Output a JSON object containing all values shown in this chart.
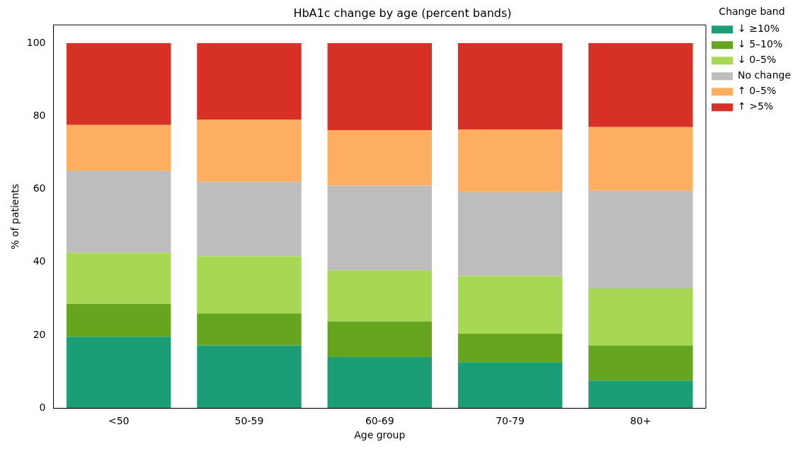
{
  "chart_data": {
    "type": "bar",
    "stacked": true,
    "title": "HbA1c change by age (percent bands)",
    "xlabel": "Age group",
    "ylabel": "% of patients",
    "legend_title": "Change band",
    "legend": "right",
    "grid": false,
    "categories": [
      "<50",
      "50-59",
      "60-69",
      "70-79",
      "80+"
    ],
    "ylim": [
      0,
      105
    ],
    "yticks": [
      0,
      20,
      40,
      60,
      80,
      100
    ],
    "series": [
      {
        "name": "↓ ≥10%",
        "color": "#1b9e77",
        "values": [
          19.6,
          17.2,
          14.0,
          12.6,
          7.6
        ]
      },
      {
        "name": "↓ 5–10%",
        "color": "#66a61e",
        "values": [
          9.0,
          8.8,
          9.8,
          7.8,
          9.6
        ]
      },
      {
        "name": "↓ 0–5%",
        "color": "#a6d854",
        "values": [
          14.0,
          15.6,
          14.0,
          15.8,
          15.6
        ]
      },
      {
        "name": "No change",
        "color": "#bdbdbd",
        "values": [
          22.4,
          20.4,
          23.2,
          23.0,
          26.8
        ]
      },
      {
        "name": "↑ 0–5%",
        "color": "#fdae61",
        "values": [
          12.6,
          17.0,
          15.2,
          17.2,
          17.4
        ]
      },
      {
        "name": "↑ >5%",
        "color": "#d73027",
        "values": [
          22.4,
          21.0,
          23.8,
          23.6,
          23.0
        ]
      }
    ]
  }
}
